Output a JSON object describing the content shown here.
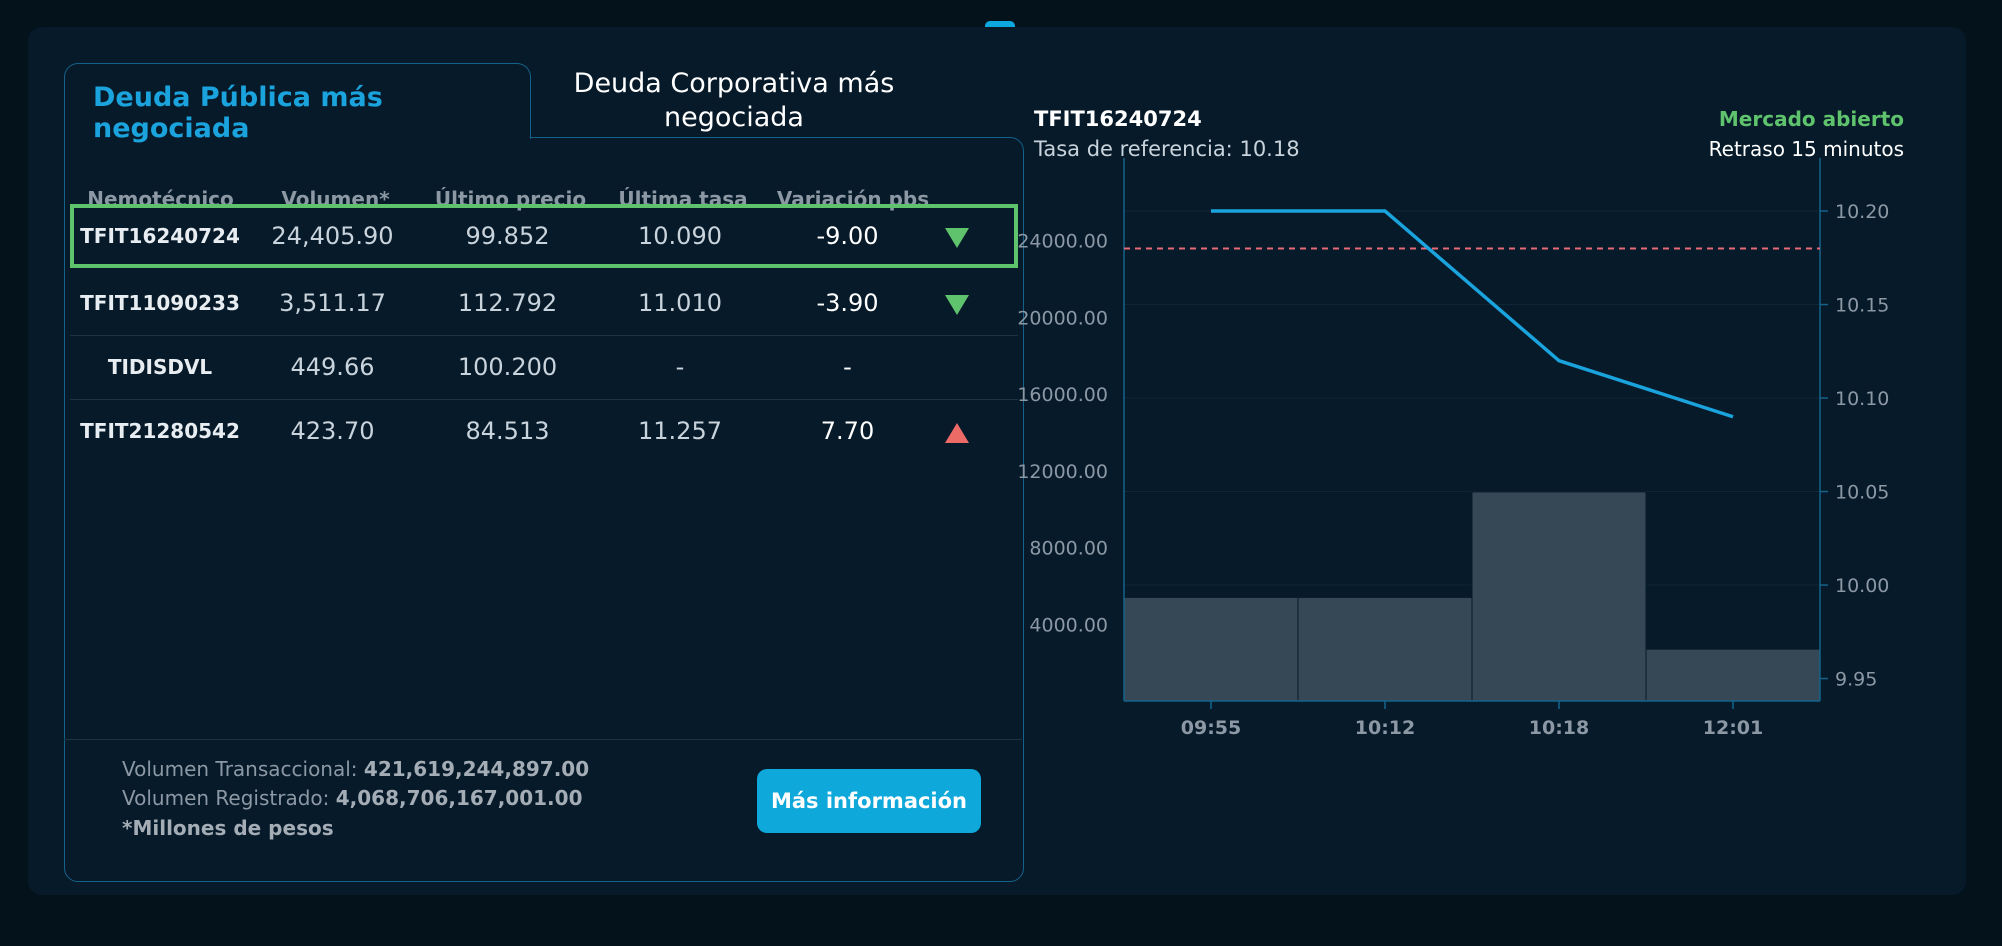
{
  "tabs": {
    "active": "Deuda Pública más negociada",
    "inactive": "Deuda Corporativa más negociada"
  },
  "table": {
    "headers": [
      "Nemotécnico",
      "Volumen*",
      "Último precio",
      "Última tasa",
      "Variación pbs"
    ],
    "rows": [
      {
        "code": "TFIT16240724",
        "volume": "24,405.90",
        "price": "99.852",
        "rate": "10.090",
        "variation": "-9.00",
        "trend": "down",
        "selected": true
      },
      {
        "code": "TFIT11090233",
        "volume": "3,511.17",
        "price": "112.792",
        "rate": "11.010",
        "variation": "-3.90",
        "trend": "down",
        "selected": false
      },
      {
        "code": "TIDISDVL",
        "volume": "449.66",
        "price": "100.200",
        "rate": "-",
        "variation": "-",
        "trend": "none",
        "selected": false
      },
      {
        "code": "TFIT21280542",
        "volume": "423.70",
        "price": "84.513",
        "rate": "11.257",
        "variation": "7.70",
        "trend": "up",
        "selected": false
      }
    ]
  },
  "footer": {
    "transactional_label": "Volumen Transaccional:",
    "transactional_value": "421,619,244,897.00",
    "registered_label": "Volumen Registrado:",
    "registered_value": "4,068,706,167,001.00",
    "note": "*Millones de pesos",
    "button_label": "Más información"
  },
  "chart_header": {
    "code": "TFIT16240724",
    "reference_label": "Tasa de referencia:",
    "reference_value": "10.18",
    "market_status": "Mercado abierto",
    "delay": "Retraso 15 minutos"
  },
  "colors": {
    "accent": "#1aa3dd",
    "positive": "#5ec36c",
    "negative": "#ec6b67",
    "bar": "#364855",
    "reference_line": "#e86a78"
  },
  "chart_data": {
    "type": "bar",
    "categories": [
      "09:55",
      "10:12",
      "10:18",
      "12:01"
    ],
    "series": [
      {
        "name": "",
        "kind": "bar",
        "axis": "left",
        "values": [
          5400,
          5400,
          10900,
          2700
        ]
      },
      {
        "name": "",
        "kind": "line",
        "axis": "right",
        "values": [
          10.2,
          10.2,
          10.12,
          10.09
        ]
      }
    ],
    "reference_line": {
      "axis": "right",
      "value": 10.18
    },
    "y_left": {
      "ticks": [
        "4000.00",
        "8000.00",
        "12000.00",
        "16000.00",
        "20000.00",
        "24000.00"
      ],
      "range": [
        0,
        27000
      ]
    },
    "y_right": {
      "ticks": [
        "9.95",
        "10.00",
        "10.05",
        "10.10",
        "10.15",
        "10.20"
      ],
      "range": [
        9.938,
        10.215
      ]
    },
    "grid": true
  }
}
